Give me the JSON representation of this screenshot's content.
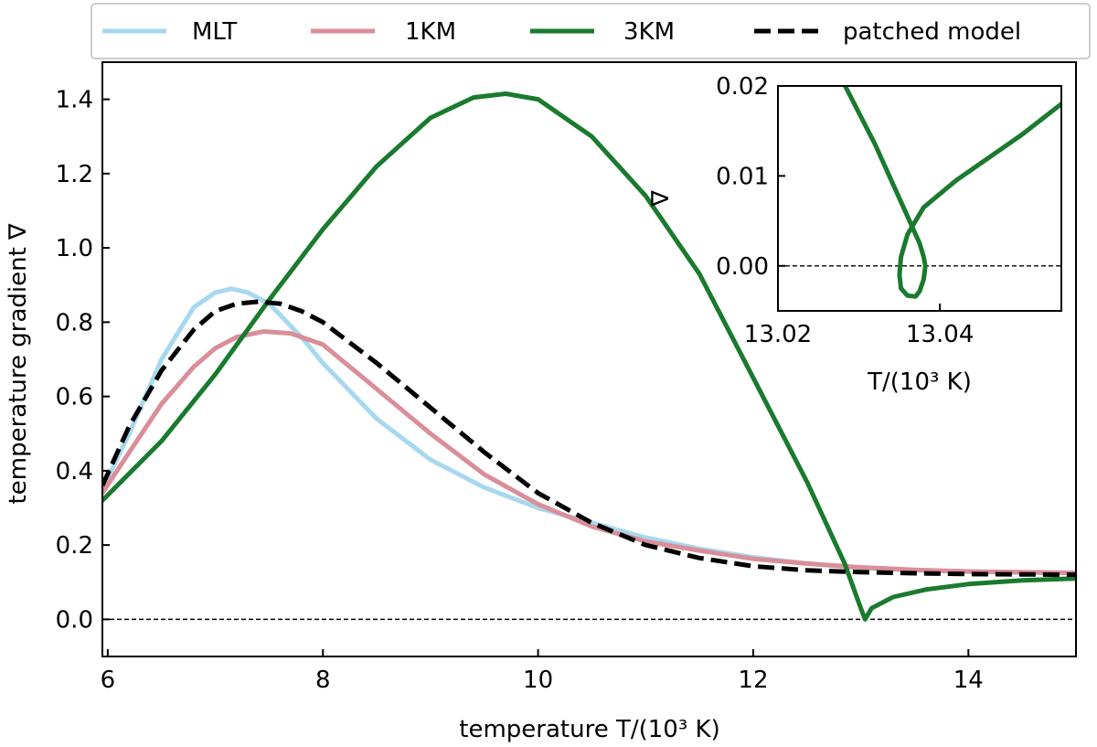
{
  "chart_data": [
    {
      "type": "line",
      "xlabel": "temperature T/(10³ K)",
      "ylabel": "temperature gradient ∇",
      "xlim": [
        5.95,
        15.0
      ],
      "ylim": [
        -0.1,
        1.5
      ],
      "xticks": [
        6,
        8,
        10,
        12,
        14
      ],
      "xtick_labels": [
        "6",
        "8",
        "10",
        "12",
        "14"
      ],
      "yticks": [
        0.0,
        0.2,
        0.4,
        0.6,
        0.8,
        1.0,
        1.2,
        1.4
      ],
      "ytick_labels": [
        "0.0",
        "0.2",
        "0.4",
        "0.6",
        "0.8",
        "1.0",
        "1.2",
        "1.4"
      ],
      "reference_line_y": 0.0,
      "legend": {
        "placement": "top (above axes)",
        "columns": 4
      },
      "series": [
        {
          "name": "MLT",
          "color": "#a8d8f0",
          "dashed": false,
          "x": [
            5.95,
            6.2,
            6.5,
            6.8,
            7.0,
            7.15,
            7.3,
            7.5,
            7.8,
            8.0,
            8.5,
            9.0,
            9.5,
            10.0,
            10.5,
            11.0,
            11.5,
            12.0,
            12.5,
            13.0,
            13.5,
            14.0,
            14.5,
            15.0
          ],
          "y": [
            0.35,
            0.5,
            0.7,
            0.84,
            0.88,
            0.89,
            0.88,
            0.85,
            0.76,
            0.69,
            0.54,
            0.43,
            0.355,
            0.3,
            0.26,
            0.22,
            0.19,
            0.167,
            0.15,
            0.138,
            0.132,
            0.128,
            0.126,
            0.125
          ]
        },
        {
          "name": "1KM",
          "color": "#d98e9a",
          "dashed": false,
          "x": [
            5.95,
            6.2,
            6.5,
            6.8,
            7.0,
            7.2,
            7.45,
            7.7,
            8.0,
            8.5,
            9.0,
            9.5,
            10.0,
            10.5,
            11.0,
            11.5,
            12.0,
            12.5,
            13.0,
            13.5,
            14.0,
            14.5,
            15.0
          ],
          "y": [
            0.34,
            0.45,
            0.58,
            0.68,
            0.73,
            0.76,
            0.775,
            0.77,
            0.74,
            0.62,
            0.5,
            0.39,
            0.31,
            0.25,
            0.21,
            0.185,
            0.163,
            0.15,
            0.14,
            0.133,
            0.129,
            0.127,
            0.125
          ]
        },
        {
          "name": "3KM",
          "color": "#1a7a2e",
          "dashed": false,
          "x": [
            5.95,
            6.5,
            7.0,
            7.5,
            8.0,
            8.5,
            9.0,
            9.4,
            9.7,
            10.0,
            10.5,
            11.0,
            11.5,
            12.0,
            12.5,
            12.85,
            13.0,
            13.04,
            13.1,
            13.3,
            13.6,
            14.0,
            14.5,
            15.0
          ],
          "y": [
            0.32,
            0.48,
            0.66,
            0.86,
            1.05,
            1.22,
            1.35,
            1.405,
            1.415,
            1.4,
            1.3,
            1.14,
            0.93,
            0.65,
            0.37,
            0.15,
            0.03,
            0.0,
            0.03,
            0.06,
            0.08,
            0.095,
            0.105,
            0.11
          ]
        },
        {
          "name": "patched model",
          "color": "#000000",
          "dashed": true,
          "x": [
            5.95,
            6.2,
            6.5,
            6.8,
            7.0,
            7.2,
            7.4,
            7.6,
            7.8,
            8.0,
            8.5,
            9.0,
            9.5,
            10.0,
            10.5,
            11.0,
            11.5,
            12.0,
            12.5,
            13.0,
            13.5,
            14.0,
            14.5,
            15.0
          ],
          "y": [
            0.36,
            0.52,
            0.67,
            0.78,
            0.83,
            0.85,
            0.855,
            0.85,
            0.83,
            0.8,
            0.69,
            0.57,
            0.45,
            0.34,
            0.26,
            0.2,
            0.165,
            0.143,
            0.132,
            0.127,
            0.124,
            0.122,
            0.121,
            0.12
          ]
        }
      ]
    },
    {
      "type": "line",
      "role": "inset",
      "xlabel": "T/(10³ K)",
      "ylabel": "∇",
      "xlim": [
        13.02,
        13.055
      ],
      "ylim": [
        -0.005,
        0.02
      ],
      "xticks": [
        13.02,
        13.04
      ],
      "xtick_labels": [
        "13.02",
        "13.04"
      ],
      "yticks": [
        0.0,
        0.01,
        0.02
      ],
      "ytick_labels": [
        "0.00",
        "0.01",
        "0.02"
      ],
      "reference_line_y": 0.0,
      "series": [
        {
          "name": "3KM",
          "color": "#1a7a2e",
          "dashed": false,
          "x": [
            13.0283,
            13.03,
            13.032,
            13.034,
            13.0355,
            13.0365,
            13.0375,
            13.038,
            13.0382,
            13.038,
            13.0375,
            13.037,
            13.036,
            13.0352,
            13.035,
            13.0352,
            13.036,
            13.038,
            13.042,
            13.046,
            13.05,
            13.055
          ],
          "y": [
            0.02,
            0.017,
            0.0135,
            0.0095,
            0.0065,
            0.0045,
            0.0025,
            0.001,
            0.0,
            -0.0015,
            -0.0028,
            -0.0034,
            -0.0033,
            -0.0025,
            -0.001,
            0.001,
            0.0035,
            0.0065,
            0.0095,
            0.012,
            0.0145,
            0.018
          ]
        }
      ]
    }
  ]
}
